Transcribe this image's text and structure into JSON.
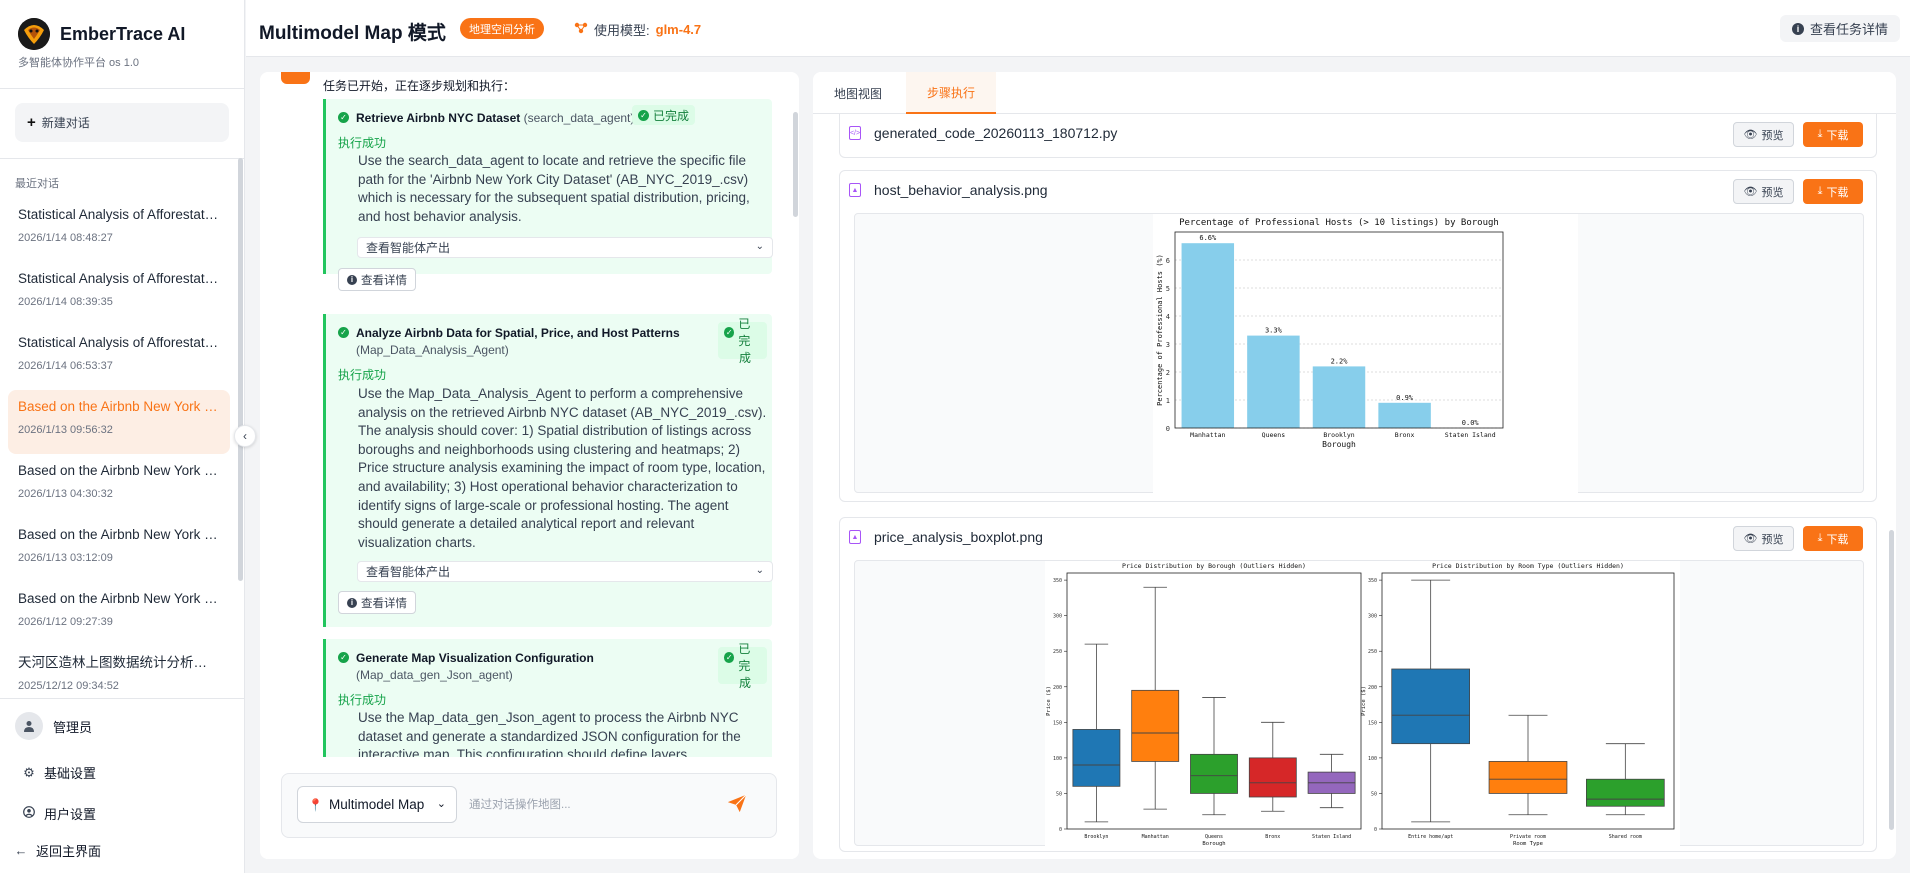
{
  "sidebar": {
    "brand_name": "EmberTrace AI",
    "brand_sub": "多智能体协作平台 os 1.0",
    "new_chat": "新建对话",
    "recent_title": "最近对话",
    "conversations": [
      {
        "title": "Statistical Analysis of Afforestation",
        "time": "2026/1/14 08:48:27"
      },
      {
        "title": "Statistical Analysis of Afforestation",
        "time": "2026/1/14 08:39:35"
      },
      {
        "title": "Statistical Analysis of Afforestation",
        "time": "2026/1/14 06:53:37"
      },
      {
        "title": "Based on the Airbnb New York City",
        "time": "2026/1/13 09:56:32"
      },
      {
        "title": "Based on the Airbnb New York City",
        "time": "2026/1/13 04:30:32"
      },
      {
        "title": "Based on the Airbnb New York City",
        "time": "2026/1/13 03:12:09"
      },
      {
        "title": "Based on the Airbnb New York City",
        "time": "2026/1/12 09:27:39"
      },
      {
        "title": "天河区造林上图数据统计分析及可视化",
        "time": "2025/12/12 09:34:52"
      }
    ],
    "user_name": "管理员",
    "basic_settings": "基础设置",
    "user_settings": "用户设置",
    "back_home": "返回主界面"
  },
  "header": {
    "title": "Multimodel Map 模式",
    "badge": "地理空间分析",
    "model_label": "使用模型:",
    "model_name": "glm-4.7",
    "task_details": "查看任务详情"
  },
  "chat": {
    "intro": "任务已开始，正在逐步规划和执行：",
    "steps": [
      {
        "title": "Retrieve Airbnb NYC Dataset",
        "agent": "(search_data_agent)",
        "status": "已完成",
        "exec": "执行成功",
        "desc": "Use the search_data_agent to locate and retrieve the specific file path for the 'Airbnb New York City Dataset' (AB_NYC_2019_.csv) which is necessary for the subsequent spatial distribution, pricing, and host behavior analysis.",
        "output_label": "查看智能体产出",
        "detail_label": "查看详情"
      },
      {
        "title": "Analyze Airbnb Data for Spatial, Price, and Host Patterns",
        "agent": "(Map_Data_Analysis_Agent)",
        "status_line1": "已完",
        "status_line2": "成",
        "exec": "执行成功",
        "desc": "Use the Map_Data_Analysis_Agent to perform a comprehensive analysis on the retrieved Airbnb NYC dataset (AB_NYC_2019_.csv). The analysis should cover: 1) Spatial distribution of listings across boroughs and neighborhoods using clustering and heatmaps; 2) Price structure analysis examining the impact of room type, location, and availability; 3) Host operational behavior characterization to identify signs of large-scale or professional hosting. The agent should generate a detailed analytical report and relevant visualization charts.",
        "output_label": "查看智能体产出",
        "detail_label": "查看详情"
      },
      {
        "title": "Generate Map Visualization Configuration",
        "agent": "(Map_data_gen_Json_agent)",
        "status_line1": "已完",
        "status_line2": "成",
        "exec": "执行成功",
        "desc": "Use the Map_data_gen_Json_agent to process the Airbnb NYC dataset and generate a standardized JSON configuration for the interactive map. This configuration should define layers"
      }
    ],
    "mode_select": "Multimodel Map",
    "input_placeholder": "通过对话操作地图..."
  },
  "right": {
    "tabs": [
      "地图视图",
      "步骤执行"
    ],
    "preview_label": "预览",
    "download_label": "下载",
    "files": [
      {
        "name": "generated_code_20260113_180712.py"
      },
      {
        "name": "host_behavior_analysis.png"
      },
      {
        "name": "price_analysis_boxplot.png"
      }
    ]
  },
  "chart_data": [
    {
      "type": "bar",
      "title": "Percentage of Professional Hosts (> 10 listings) by Borough",
      "xlabel": "Borough",
      "ylabel": "Percentage of Professional Hosts (%)",
      "categories": [
        "Manhattan",
        "Queens",
        "Brooklyn",
        "Bronx",
        "Staten Island"
      ],
      "values": [
        6.6,
        3.3,
        2.2,
        0.9,
        0.0
      ],
      "value_labels": [
        "6.6%",
        "3.3%",
        "2.2%",
        "0.9%",
        "0.0%"
      ],
      "ylim": [
        0,
        7
      ],
      "yticks": [
        0,
        1,
        2,
        3,
        4,
        5,
        6
      ],
      "color": "#87ceeb"
    },
    {
      "type": "box",
      "title": "Price Distribution by Borough (Outliers Hidden)",
      "xlabel": "Borough",
      "ylabel": "Price ($)",
      "ylim": [
        0,
        360
      ],
      "yticks": [
        0,
        50,
        100,
        150,
        200,
        250,
        300,
        350
      ],
      "groups": [
        {
          "name": "Brooklyn",
          "min": 10,
          "q1": 60,
          "median": 90,
          "q3": 140,
          "max": 260,
          "color": "#1f77b4"
        },
        {
          "name": "Manhattan",
          "min": 28,
          "q1": 95,
          "median": 135,
          "q3": 195,
          "max": 340,
          "color": "#ff7f0e"
        },
        {
          "name": "Queens",
          "min": 20,
          "q1": 50,
          "median": 75,
          "q3": 105,
          "max": 185,
          "color": "#2ca02c"
        },
        {
          "name": "Bronx",
          "min": 25,
          "q1": 45,
          "median": 65,
          "q3": 100,
          "max": 150,
          "color": "#d62728"
        },
        {
          "name": "Staten Island",
          "min": 30,
          "q1": 50,
          "median": 65,
          "q3": 80,
          "max": 105,
          "color": "#9467bd"
        }
      ]
    },
    {
      "type": "box",
      "title": "Price Distribution by Room Type (Outliers Hidden)",
      "xlabel": "Room Type",
      "ylabel": "Price ($)",
      "ylim": [
        0,
        360
      ],
      "yticks": [
        0,
        50,
        100,
        150,
        200,
        250,
        300,
        350
      ],
      "groups": [
        {
          "name": "Entire home/apt",
          "min": 10,
          "q1": 120,
          "median": 160,
          "q3": 225,
          "max": 350,
          "color": "#1f77b4"
        },
        {
          "name": "Private room",
          "min": 20,
          "q1": 50,
          "median": 70,
          "q3": 95,
          "max": 160,
          "color": "#ff7f0e"
        },
        {
          "name": "Shared room",
          "min": 20,
          "q1": 32,
          "median": 42,
          "q3": 70,
          "max": 120,
          "color": "#2ca02c"
        }
      ]
    }
  ]
}
